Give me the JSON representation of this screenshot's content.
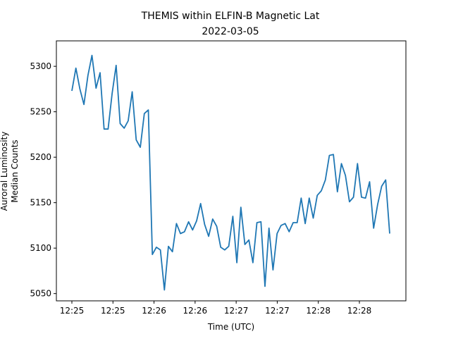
{
  "chart_data": {
    "type": "line",
    "title": "THEMIS within ELFIN-B Magnetic Lat",
    "subtitle": "2022-03-05",
    "xlabel": "Time (UTC)",
    "ylabel": "Auroral Luminosity",
    "ylabel2": "Median Counts",
    "x_tick_labels": [
      "12:25",
      "12:25",
      "12:26",
      "12:26",
      "12:27",
      "12:27",
      "12:28",
      "12:28"
    ],
    "y_ticks": [
      5050,
      5100,
      5150,
      5200,
      5250,
      5300
    ],
    "ylim": [
      5042,
      5328
    ],
    "grid": false,
    "series": [
      {
        "color": "#1f77b4",
        "values": [
          5273,
          5298,
          5275,
          5258,
          5290,
          5312,
          5276,
          5293,
          5231,
          5231,
          5270,
          5301,
          5237,
          5232,
          5240,
          5272,
          5219,
          5211,
          5248,
          5252,
          5093,
          5101,
          5098,
          5054,
          5102,
          5096,
          5127,
          5116,
          5118,
          5129,
          5120,
          5130,
          5149,
          5126,
          5113,
          5132,
          5124,
          5101,
          5098,
          5102,
          5135,
          5084,
          5145,
          5104,
          5109,
          5084,
          5128,
          5129,
          5058,
          5122,
          5076,
          5116,
          5125,
          5127,
          5118,
          5128,
          5128,
          5155,
          5127,
          5155,
          5133,
          5158,
          5163,
          5175,
          5202,
          5203,
          5162,
          5193,
          5180,
          5151,
          5156,
          5193,
          5156,
          5155,
          5173,
          5122,
          5148,
          5168,
          5175,
          5116
        ]
      }
    ]
  }
}
